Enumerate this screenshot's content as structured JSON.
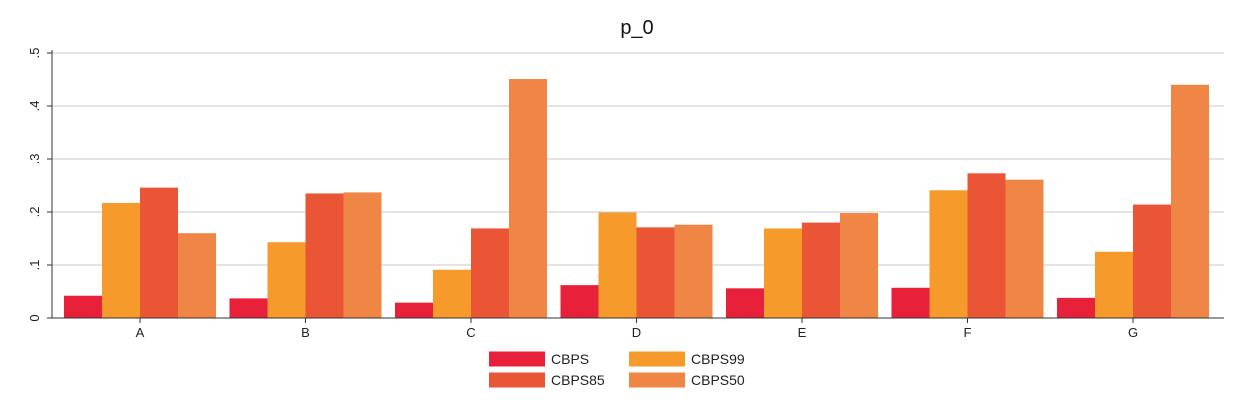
{
  "chart_data": {
    "type": "bar",
    "title": "p_0",
    "xlabel": "",
    "ylabel": "",
    "categories": [
      "A",
      "B",
      "C",
      "D",
      "E",
      "F",
      "G"
    ],
    "ylim": [
      0,
      0.5
    ],
    "yticks": [
      0,
      0.1,
      0.2,
      0.3,
      0.4,
      0.5
    ],
    "ytick_labels": [
      "0",
      ".1",
      ".2",
      ".3",
      ".4",
      ".5"
    ],
    "grid": true,
    "legend_position": "bottom",
    "series": [
      {
        "name": "CBPS",
        "color": "#e8203a",
        "values": [
          0.042,
          0.037,
          0.029,
          0.062,
          0.056,
          0.057,
          0.038
        ]
      },
      {
        "name": "CBPS99",
        "color": "#f59a2b",
        "values": [
          0.217,
          0.143,
          0.091,
          0.199,
          0.169,
          0.241,
          0.125
        ]
      },
      {
        "name": "CBPS85",
        "color": "#ea5536",
        "values": [
          0.246,
          0.235,
          0.169,
          0.171,
          0.18,
          0.273,
          0.214
        ]
      },
      {
        "name": "CBPS50",
        "color": "#f08645",
        "values": [
          0.16,
          0.237,
          0.451,
          0.176,
          0.198,
          0.261,
          0.44
        ]
      }
    ],
    "legend_order": [
      "CBPS",
      "CBPS99",
      "CBPS85",
      "CBPS50"
    ]
  }
}
